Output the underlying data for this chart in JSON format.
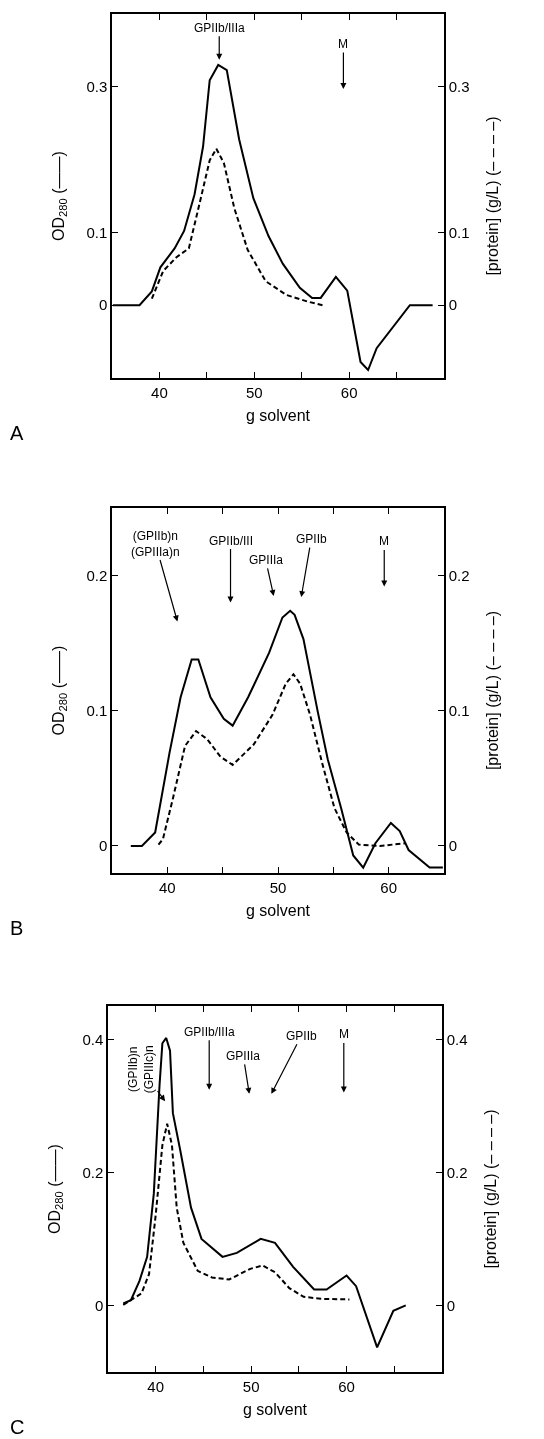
{
  "chart_data": [
    {
      "type": "line",
      "xlabel": "g solvent",
      "ylabel": "OD$_{280}$ (——)",
      "y2label": "[protein] (g/L) (– – – –)",
      "xlim": [
        35,
        70
      ],
      "xticks": [
        40,
        {
          "value": 45,
          "label": null
        },
        50,
        {
          "value": 55,
          "label": null
        },
        60,
        {
          "value": 65,
          "label": null
        }
      ],
      "ylim": [
        -0.1,
        0.4
      ],
      "yticks": [
        0,
        0.1,
        0.3
      ],
      "y2lim": [
        -0.1,
        0.4
      ],
      "y2ticks": [
        0,
        0.1,
        0.3
      ],
      "marker": "none",
      "series": [
        {
          "color": "#000000",
          "line_style": "solid",
          "x": [
            35.1,
            37.9,
            39.2,
            40.1,
            41.6,
            42.6,
            43.7,
            44.6,
            45.3,
            46.2,
            47.1,
            48.4,
            49.9,
            51.5,
            53.0,
            54.8,
            56.1,
            57.0,
            58.6,
            59.8,
            61.2,
            62.0,
            62.9,
            66.4,
            68.8
          ],
          "values": [
            0,
            0,
            0.019,
            0.052,
            0.078,
            0.102,
            0.152,
            0.218,
            0.309,
            0.33,
            0.323,
            0.228,
            0.147,
            0.095,
            0.057,
            0.024,
            0.01,
            0.01,
            0.039,
            0.02,
            -0.078,
            -0.089,
            -0.059,
            0,
            0
          ]
        },
        {
          "color": "#000000",
          "line_style": "dashed",
          "axis": "y2",
          "x": [
            39.2,
            40.4,
            41.8,
            43.1,
            44.2,
            45.3,
            46.0,
            46.8,
            47.9,
            49.3,
            51.2,
            53.4,
            55.6,
            57.2
          ],
          "values": [
            0.009,
            0.047,
            0.066,
            0.078,
            0.138,
            0.199,
            0.215,
            0.195,
            0.133,
            0.076,
            0.033,
            0.014,
            0.005,
            0
          ]
        }
      ],
      "annotations": [
        "GPIIb/IIIa",
        "M",
        "A"
      ]
    },
    {
      "type": "line",
      "xlabel": "g solvent",
      "ylabel": "OD$_{280}$ (——)",
      "y2label": "[protein] (g/L) (– – – –)",
      "xlim": [
        35,
        65
      ],
      "xticks": [
        40,
        {
          "value": 45,
          "label": null
        },
        50,
        {
          "value": 55,
          "label": null
        },
        60
      ],
      "ylim": [
        -0.02,
        0.25
      ],
      "yticks": [
        0,
        0.1,
        0.2
      ],
      "y2lim": [
        -0.02,
        0.25
      ],
      "y2ticks": [
        0,
        0.1,
        0.2
      ],
      "marker": "none",
      "series": [
        {
          "color": "#000000",
          "line_style": "solid",
          "x": [
            36.7,
            37.7,
            38.9,
            40.2,
            41.2,
            42.2,
            42.8,
            43.9,
            45.1,
            45.9,
            47.3,
            49.2,
            50.4,
            51.1,
            51.5,
            52.3,
            53.6,
            54.5,
            55.7,
            56.8,
            57.7,
            58.8,
            60.2,
            61.0,
            61.8,
            63.7,
            64.9
          ],
          "values": [
            0,
            0,
            0.01,
            0.069,
            0.11,
            0.138,
            0.138,
            0.11,
            0.094,
            0.089,
            0.11,
            0.143,
            0.169,
            0.174,
            0.171,
            0.153,
            0.099,
            0.064,
            0.028,
            -0.007,
            -0.016,
            0.002,
            0.017,
            0.011,
            -0.003,
            -0.016,
            -0.016
          ]
        },
        {
          "color": "#000000",
          "line_style": "dashed",
          "axis": "y2",
          "x": [
            39.2,
            39.6,
            40.5,
            41.6,
            42.6,
            43.6,
            44.8,
            45.9,
            47.8,
            49.5,
            50.7,
            51.4,
            52.0,
            52.9,
            54.0,
            55.1,
            56.2,
            57.3,
            59.2,
            61.5
          ],
          "values": [
            0.001,
            0.005,
            0.035,
            0.074,
            0.085,
            0.079,
            0.066,
            0.06,
            0.075,
            0.097,
            0.12,
            0.127,
            0.12,
            0.097,
            0.061,
            0.028,
            0.01,
            0.001,
            0,
            0.002
          ]
        }
      ],
      "annotations": [
        "(GPIIb)n\n(GPIIIa)n",
        "GPIIb/III",
        "GPIIIa",
        "GPIIb",
        "M",
        "B"
      ]
    },
    {
      "type": "line",
      "xlabel": "g solvent",
      "ylabel": "OD$_{280}$ (——)",
      "y2label": "[protein] (g/L) (– – – –)",
      "xlim": [
        35,
        70
      ],
      "xticks": [
        40,
        {
          "value": 45,
          "label": null
        },
        50,
        {
          "value": 55,
          "label": null
        },
        60,
        {
          "value": 65,
          "label": null
        }
      ],
      "ylim": [
        -0.1,
        0.45
      ],
      "yticks": [
        0,
        0.2,
        0.4
      ],
      "y2lim": [
        -0.1,
        0.45
      ],
      "y2ticks": [
        0,
        0.2,
        0.4
      ],
      "marker": "none",
      "series": [
        {
          "color": "#000000",
          "line_style": "solid",
          "x": [
            36.6,
            37.4,
            38.3,
            39.1,
            39.8,
            40.4,
            40.7,
            41.1,
            41.5,
            41.8,
            42.6,
            43.7,
            44.8,
            47.0,
            48.5,
            51.0,
            52.5,
            54.4,
            56.6,
            57.9,
            60.0,
            61.0,
            63.2,
            64.9,
            66.2
          ],
          "values": [
            0.003,
            0.008,
            0.037,
            0.073,
            0.168,
            0.331,
            0.394,
            0.402,
            0.383,
            0.289,
            0.231,
            0.147,
            0.1,
            0.073,
            0.079,
            0.1,
            0.094,
            0.058,
            0.024,
            0.024,
            0.045,
            0.029,
            -0.063,
            -0.008,
            0
          ]
        },
        {
          "color": "#000000",
          "line_style": "dashed",
          "axis": "y2",
          "x": [
            36.6,
            38.5,
            39.3,
            40.0,
            40.7,
            41.2,
            41.7,
            42.2,
            42.9,
            44.4,
            45.9,
            47.7,
            49.9,
            51.2,
            52.5,
            54.0,
            55.5,
            57.3,
            60.3
          ],
          "values": [
            0.001,
            0.018,
            0.047,
            0.136,
            0.241,
            0.273,
            0.241,
            0.147,
            0.094,
            0.052,
            0.042,
            0.039,
            0.055,
            0.06,
            0.05,
            0.026,
            0.013,
            0.01,
            0.009
          ]
        }
      ],
      "annotations": [
        "(GPIIb)n\n(GPIIIc)n",
        "GPIIb/IIIa",
        "GPIIIa",
        "GPIIb",
        "M",
        "C"
      ]
    }
  ]
}
